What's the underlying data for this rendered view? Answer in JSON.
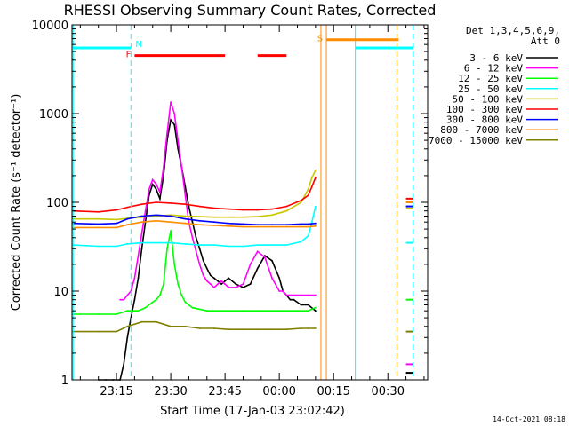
{
  "chart_data": {
    "type": "line",
    "title": "RHESSI Observing Summary Count Rates, Corrected",
    "xlabel": "Start Time (17-Jan-03 23:02:42)",
    "ylabel": "Corrected Count Rate (s⁻¹ detector⁻¹)",
    "yscale": "log",
    "ylim": [
      1,
      10000
    ],
    "y_ticks": [
      1,
      10,
      100,
      1000,
      10000
    ],
    "y_tick_labels": [
      "1",
      "10",
      "100",
      "1000",
      "10000"
    ],
    "x_unit": "minutes after 23:00",
    "xlim": [
      2.7,
      101
    ],
    "x_ticks": [
      15,
      30,
      45,
      60,
      75,
      90
    ],
    "x_tick_labels": [
      "23:15",
      "23:30",
      "23:45",
      "00:00",
      "00:15",
      "00:30"
    ],
    "legend_header": [
      "Det 1,3,4,5,6,9,",
      "Att 0"
    ],
    "legend_position": "right",
    "timestamp": "14-Oct-2021 08:18",
    "series": [
      {
        "name": "3 - 6 keV",
        "color": "#000000",
        "x": [
          10,
          12,
          14,
          16,
          17,
          18,
          19,
          20,
          21,
          22,
          23,
          24,
          25,
          26,
          27,
          28,
          29,
          30,
          31,
          32,
          33,
          34,
          35,
          36,
          37,
          38,
          39,
          40,
          41,
          42,
          43,
          44,
          45,
          46,
          48,
          50,
          52,
          54,
          56,
          58,
          60,
          61,
          62,
          63,
          64,
          66,
          68,
          70
        ],
        "y": [
          1,
          1,
          1,
          1,
          1.5,
          3,
          5,
          8,
          14,
          30,
          60,
          120,
          160,
          140,
          110,
          200,
          500,
          850,
          750,
          400,
          250,
          150,
          90,
          60,
          40,
          30,
          22,
          18,
          15,
          14,
          13,
          12,
          13,
          14,
          12,
          11,
          12,
          18,
          25,
          22,
          14,
          10,
          9,
          8,
          8,
          7,
          7,
          6
        ]
      },
      {
        "name": "6 - 12 keV",
        "color": "#ff00ff",
        "x": [
          16,
          17,
          18,
          19,
          20,
          21,
          22,
          23,
          24,
          25,
          26,
          27,
          28,
          29,
          30,
          31,
          32,
          33,
          34,
          35,
          36,
          37,
          38,
          39,
          40,
          41,
          42,
          43,
          44,
          45,
          46,
          48,
          50,
          52,
          54,
          56,
          58,
          60,
          61,
          62,
          63,
          64,
          66,
          68,
          70
        ],
        "y": [
          8,
          8,
          9,
          10,
          14,
          25,
          45,
          80,
          140,
          180,
          160,
          130,
          250,
          600,
          1350,
          1000,
          500,
          250,
          120,
          60,
          40,
          28,
          20,
          15,
          13,
          12,
          11,
          12,
          13,
          12,
          11,
          11,
          12,
          20,
          28,
          24,
          14,
          10,
          10,
          9,
          9,
          9,
          9,
          9,
          9
        ]
      },
      {
        "name": "12 - 25 keV",
        "color": "#00ff00",
        "x": [
          3,
          10,
          15,
          18,
          21,
          23,
          24,
          25,
          26,
          27,
          28,
          29,
          30,
          31,
          32,
          33,
          34,
          36,
          40,
          45,
          50,
          55,
          60,
          65,
          68,
          70
        ],
        "y": [
          5.5,
          5.5,
          5.5,
          6,
          6,
          6.5,
          7,
          7.5,
          8,
          9,
          12,
          30,
          48,
          20,
          12,
          9,
          7.5,
          6.5,
          6,
          6,
          6,
          6,
          6,
          6,
          6,
          6.5
        ]
      },
      {
        "name": "25 - 50 keV",
        "color": "#00ffff",
        "x": [
          3,
          10,
          15,
          18,
          22,
          26,
          30,
          34,
          38,
          42,
          46,
          50,
          54,
          58,
          62,
          66,
          68,
          69,
          70
        ],
        "y": [
          33,
          32,
          32,
          34,
          35,
          35,
          35,
          34,
          33,
          33,
          32,
          32,
          33,
          33,
          33,
          36,
          42,
          60,
          90
        ]
      },
      {
        "name": "50 - 100 keV",
        "color": "#c8c800",
        "x": [
          3,
          10,
          15,
          18,
          22,
          26,
          30,
          34,
          38,
          42,
          46,
          50,
          54,
          58,
          62,
          66,
          68,
          69,
          70
        ],
        "y": [
          65,
          65,
          64,
          66,
          68,
          70,
          72,
          70,
          69,
          68,
          68,
          68,
          69,
          72,
          80,
          100,
          140,
          190,
          230
        ]
      },
      {
        "name": "100 - 300 keV",
        "color": "#ff0000",
        "x": [
          3,
          10,
          15,
          18,
          22,
          26,
          30,
          34,
          38,
          42,
          46,
          50,
          54,
          58,
          62,
          66,
          68,
          69,
          70
        ],
        "y": [
          80,
          78,
          82,
          88,
          95,
          100,
          98,
          95,
          90,
          86,
          84,
          82,
          82,
          84,
          90,
          105,
          120,
          150,
          190
        ]
      },
      {
        "name": "300 - 800 keV",
        "color": "#0000ff",
        "x": [
          3,
          10,
          15,
          18,
          22,
          26,
          30,
          34,
          38,
          42,
          46,
          50,
          54,
          58,
          62,
          66,
          68,
          70
        ],
        "y": [
          58,
          57,
          58,
          65,
          70,
          72,
          70,
          65,
          62,
          60,
          58,
          57,
          56,
          56,
          56,
          57,
          57,
          58
        ]
      },
      {
        "name": "800 - 7000 keV",
        "color": "#ff8c00",
        "x": [
          3,
          10,
          15,
          18,
          22,
          26,
          30,
          34,
          38,
          42,
          46,
          50,
          54,
          58,
          62,
          66,
          68,
          70
        ],
        "y": [
          52,
          52,
          52,
          56,
          60,
          62,
          60,
          58,
          56,
          55,
          54,
          53,
          53,
          53,
          53,
          53,
          53,
          54
        ]
      },
      {
        "name": "7000 - 15000 keV",
        "color": "#808000",
        "x": [
          3,
          10,
          15,
          18,
          22,
          26,
          30,
          34,
          38,
          42,
          46,
          50,
          54,
          58,
          62,
          66,
          68,
          70
        ],
        "y": [
          3.5,
          3.5,
          3.5,
          4,
          4.5,
          4.5,
          4,
          4,
          3.8,
          3.8,
          3.7,
          3.7,
          3.7,
          3.7,
          3.7,
          3.8,
          3.8,
          3.8
        ]
      }
    ],
    "late_segment": {
      "x": [
        95,
        97
      ],
      "values": {
        "3 - 6 keV": 1.2,
        "6 - 12 keV": 1.5,
        "12 - 25 keV": 8,
        "25 - 50 keV": 35,
        "50 - 100 keV": 85,
        "100 - 300 keV": 110,
        "300 - 800 keV": 90,
        "800 - 7000 keV": 100,
        "7000 - 15000 keV": 3.5
      }
    },
    "flag_bars": [
      {
        "label": "N",
        "color": "#00ffff",
        "y": 5500,
        "segments": [
          [
            3,
            19
          ],
          [
            81,
            97
          ]
        ]
      },
      {
        "label": "F",
        "color": "#ff0000",
        "y": 4500,
        "segments": [
          [
            20,
            45
          ],
          [
            54,
            62
          ]
        ]
      },
      {
        "label": "S",
        "color": "#ff8c00",
        "y": 6800,
        "segments": [
          [
            73,
            93
          ]
        ]
      }
    ],
    "vertical_markers": [
      {
        "x": 3,
        "color": "#00ffff",
        "style": "solid"
      },
      {
        "x": 19,
        "color": "#00ffff",
        "style": "dashed"
      },
      {
        "x": 71.5,
        "color": "#ff8c00",
        "style": "solid"
      },
      {
        "x": 73,
        "color": "#ff8c00",
        "style": "solid"
      },
      {
        "x": 81,
        "color": "#00ffff",
        "style": "solid"
      },
      {
        "x": 92.5,
        "color": "#ff8c00",
        "style": "dashed"
      },
      {
        "x": 97,
        "color": "#00ffff",
        "style": "dashed"
      }
    ]
  }
}
